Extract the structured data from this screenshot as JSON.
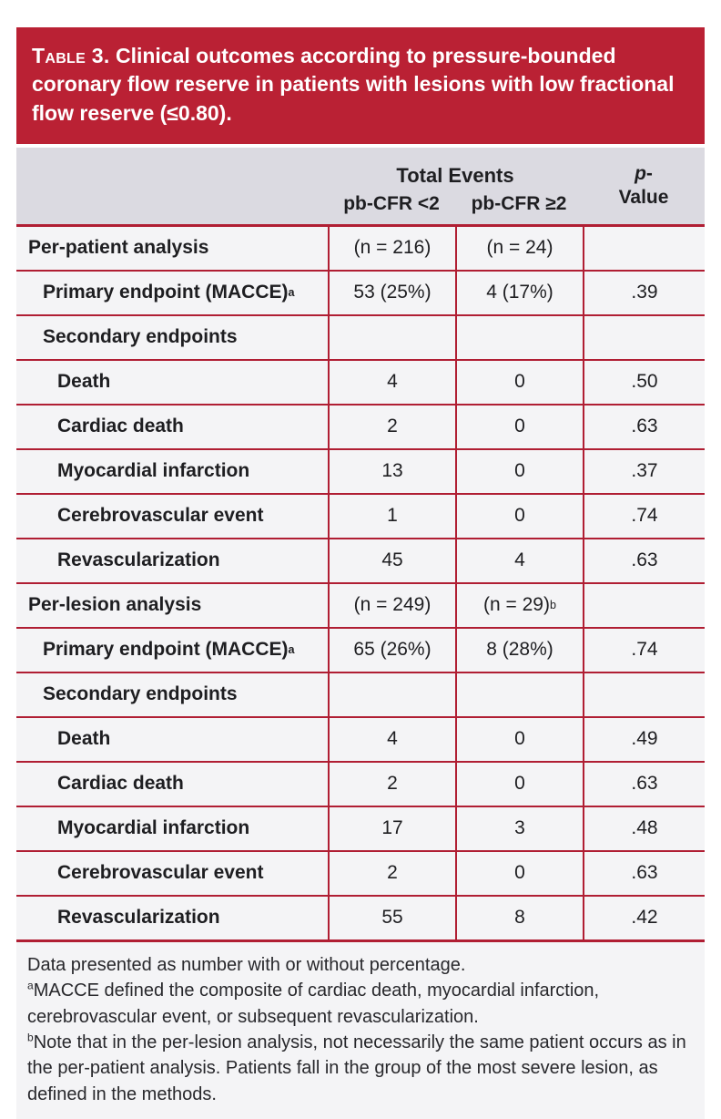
{
  "colors": {
    "accent_red": "#BA2134",
    "rule_red": "#B01E33",
    "header_bg": "#DBDAE1",
    "row_bg": "#F4F4F6",
    "title_text": "#FFFFFF",
    "body_text": "#1E1E21"
  },
  "title": {
    "label": "Table 3.",
    "text": " Clinical outcomes according to pressure-bounded coronary flow reserve in patients with lesions with low fractional flow reserve (≤0.80)."
  },
  "header": {
    "total_events": "Total Events",
    "group1": "pb-CFR <2",
    "group2": "pb-CFR ≥2",
    "p_italic": "p",
    "p_hyphen": "-",
    "p_word": "Value"
  },
  "table": {
    "rows": [
      {
        "label": "Per-patient analysis",
        "sup": "",
        "indent": 0,
        "events_lt2": "(n = 216)",
        "events_ge2": "(n = 24)",
        "events_ge2_sup": "",
        "p_value": ""
      },
      {
        "label": "Primary endpoint (MACCE)",
        "sup": "a",
        "indent": 1,
        "events_lt2": "53 (25%)",
        "events_ge2": "4 (17%)",
        "events_ge2_sup": "",
        "p_value": ".39"
      },
      {
        "label": "Secondary endpoints",
        "sup": "",
        "indent": 1,
        "events_lt2": "",
        "events_ge2": "",
        "events_ge2_sup": "",
        "p_value": ""
      },
      {
        "label": "Death",
        "sup": "",
        "indent": 2,
        "events_lt2": "4",
        "events_ge2": "0",
        "events_ge2_sup": "",
        "p_value": ".50"
      },
      {
        "label": "Cardiac death",
        "sup": "",
        "indent": 2,
        "events_lt2": "2",
        "events_ge2": "0",
        "events_ge2_sup": "",
        "p_value": ".63"
      },
      {
        "label": "Myocardial infarction",
        "sup": "",
        "indent": 2,
        "events_lt2": "13",
        "events_ge2": "0",
        "events_ge2_sup": "",
        "p_value": ".37"
      },
      {
        "label": "Cerebrovascular event",
        "sup": "",
        "indent": 2,
        "events_lt2": "1",
        "events_ge2": "0",
        "events_ge2_sup": "",
        "p_value": ".74"
      },
      {
        "label": "Revascularization",
        "sup": "",
        "indent": 2,
        "events_lt2": "45",
        "events_ge2": "4",
        "events_ge2_sup": "",
        "p_value": ".63"
      },
      {
        "label": "Per-lesion analysis",
        "sup": "",
        "indent": 0,
        "events_lt2": "(n = 249)",
        "events_ge2": "(n = 29)",
        "events_ge2_sup": "b",
        "p_value": ""
      },
      {
        "label": "Primary endpoint (MACCE)",
        "sup": "a",
        "indent": 1,
        "events_lt2": "65 (26%)",
        "events_ge2": "8 (28%)",
        "events_ge2_sup": "",
        "p_value": ".74"
      },
      {
        "label": "Secondary endpoints",
        "sup": "",
        "indent": 1,
        "events_lt2": "",
        "events_ge2": "",
        "events_ge2_sup": "",
        "p_value": ""
      },
      {
        "label": "Death",
        "sup": "",
        "indent": 2,
        "events_lt2": "4",
        "events_ge2": "0",
        "events_ge2_sup": "",
        "p_value": ".49"
      },
      {
        "label": "Cardiac death",
        "sup": "",
        "indent": 2,
        "events_lt2": "2",
        "events_ge2": "0",
        "events_ge2_sup": "",
        "p_value": ".63"
      },
      {
        "label": "Myocardial infarction",
        "sup": "",
        "indent": 2,
        "events_lt2": "17",
        "events_ge2": "3",
        "events_ge2_sup": "",
        "p_value": ".48"
      },
      {
        "label": "Cerebrovascular event",
        "sup": "",
        "indent": 2,
        "events_lt2": "2",
        "events_ge2": "0",
        "events_ge2_sup": "",
        "p_value": ".63"
      },
      {
        "label": "Revascularization",
        "sup": "",
        "indent": 2,
        "events_lt2": "55",
        "events_ge2": "8",
        "events_ge2_sup": "",
        "p_value": ".42"
      }
    ]
  },
  "footnotes": [
    {
      "sup": "",
      "text": "Data presented as number with or without percentage."
    },
    {
      "sup": "a",
      "text": "MACCE defined the composite of cardiac death, myocardial infarction, cerebrovascular event, or subsequent revascularization."
    },
    {
      "sup": "b",
      "text": "Note that in the per-lesion analysis, not necessarily the same patient occurs as in the per-patient analysis. Patients fall in the group of the most severe lesion, as defined in the methods."
    }
  ]
}
